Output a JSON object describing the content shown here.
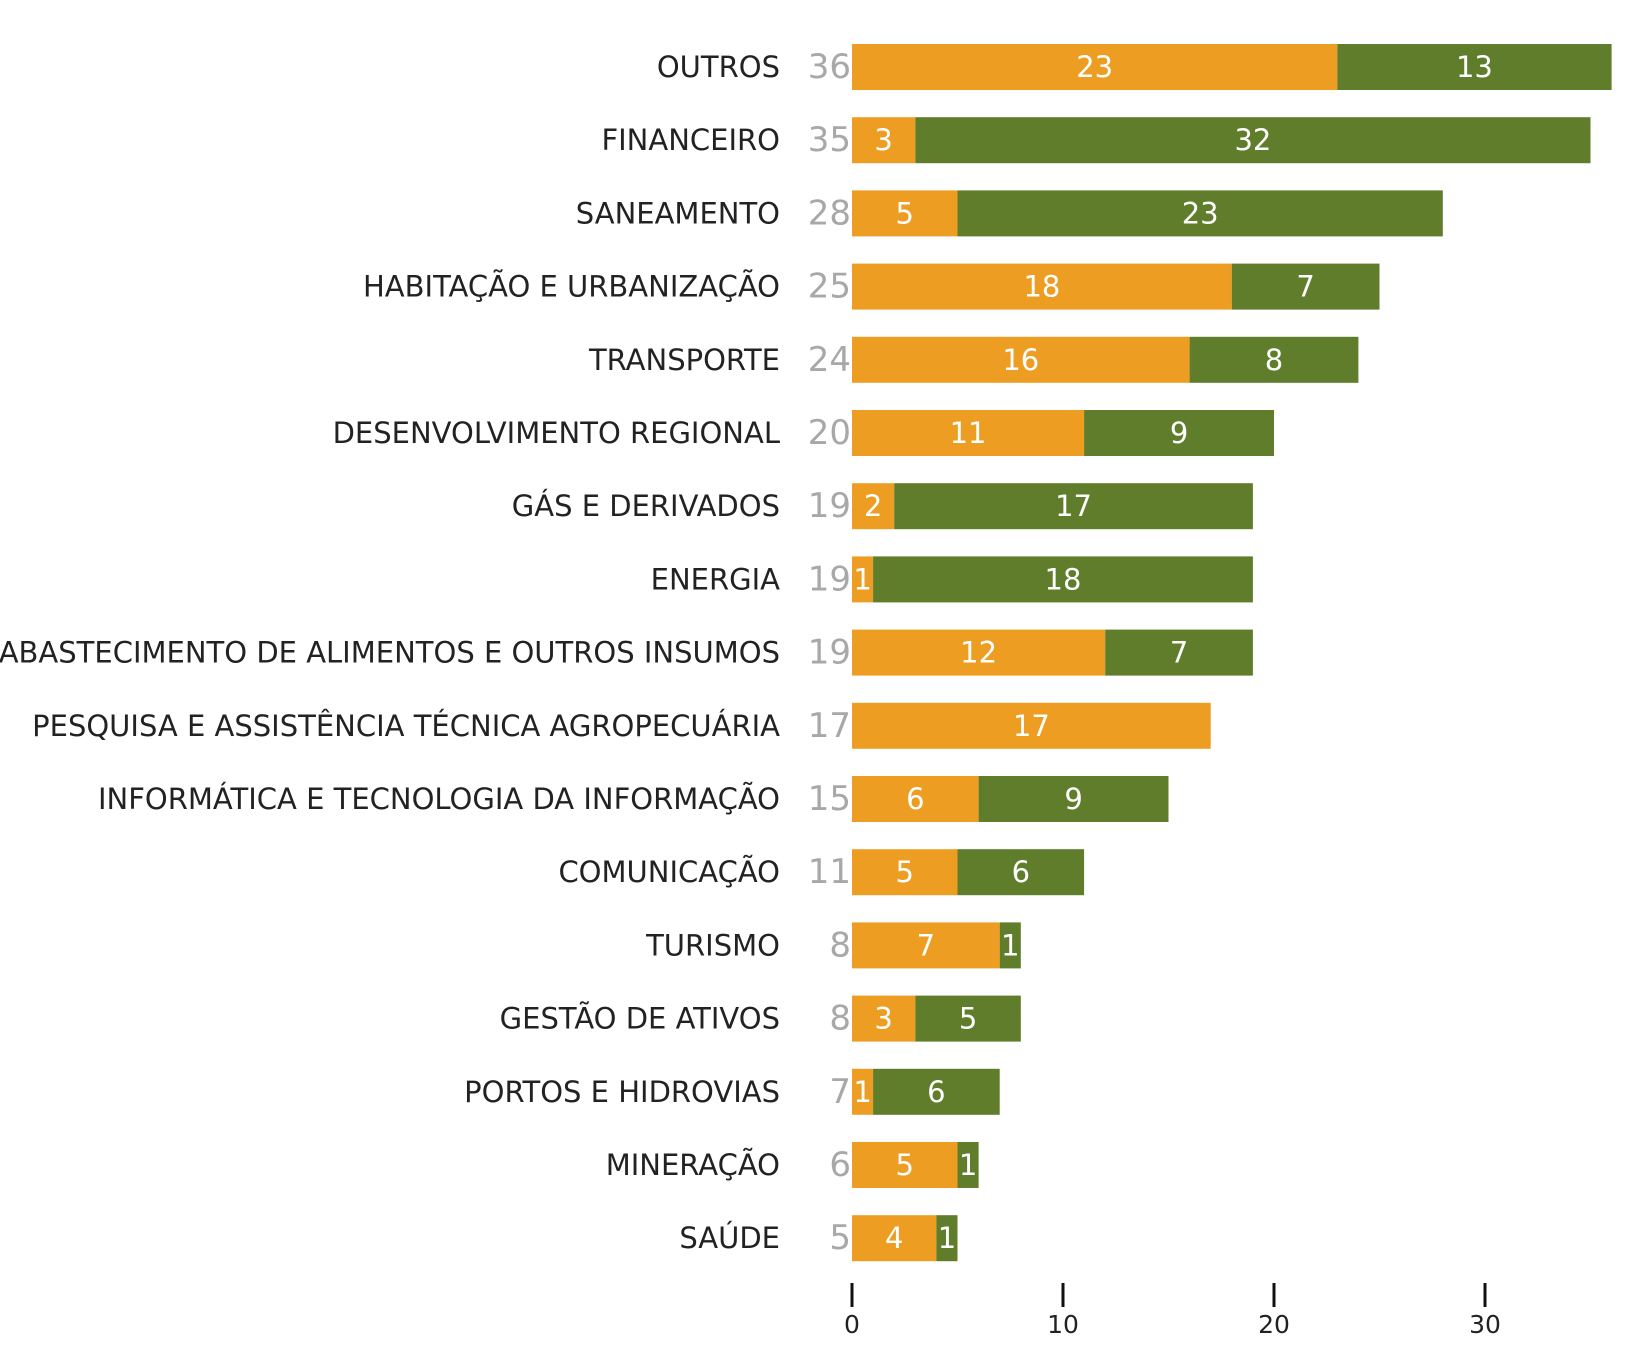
{
  "colors": {
    "series_a": "#ed9e22",
    "series_b": "#5f7d2a",
    "total_text": "#a8a8a8",
    "label_text": "#222222"
  },
  "chart_data": {
    "type": "bar",
    "orientation": "horizontal",
    "stacked": true,
    "title": "",
    "xlabel": "",
    "ylabel": "",
    "xlim": [
      0,
      36
    ],
    "x_ticks": [
      0,
      10,
      20,
      30
    ],
    "grid": false,
    "legend": "none",
    "categories": [
      "OUTROS",
      "FINANCEIRO",
      "SANEAMENTO",
      "HABITAÇÃO E URBANIZAÇÃO",
      "TRANSPORTE",
      "DESENVOLVIMENTO REGIONAL",
      "GÁS E DERIVADOS",
      "ENERGIA",
      "ABASTECIMENTO DE ALIMENTOS E OUTROS INSUMOS",
      "PESQUISA E ASSISTÊNCIA TÉCNICA AGROPECUÁRIA",
      "INFORMÁTICA E TECNOLOGIA DA INFORMAÇÃO",
      "COMUNICAÇÃO",
      "TURISMO",
      "GESTÃO DE ATIVOS",
      "PORTOS E HIDROVIAS",
      "MINERAÇÃO",
      "SAÚDE"
    ],
    "totals": [
      36,
      35,
      28,
      25,
      24,
      20,
      19,
      19,
      19,
      17,
      15,
      11,
      8,
      8,
      7,
      6,
      5
    ],
    "series": [
      {
        "values": [
          23,
          3,
          5,
          18,
          16,
          11,
          2,
          1,
          12,
          17,
          6,
          5,
          7,
          3,
          1,
          5,
          4
        ]
      },
      {
        "values": [
          13,
          32,
          23,
          7,
          8,
          9,
          17,
          18,
          7,
          0,
          9,
          6,
          1,
          5,
          6,
          1,
          1
        ]
      }
    ]
  }
}
